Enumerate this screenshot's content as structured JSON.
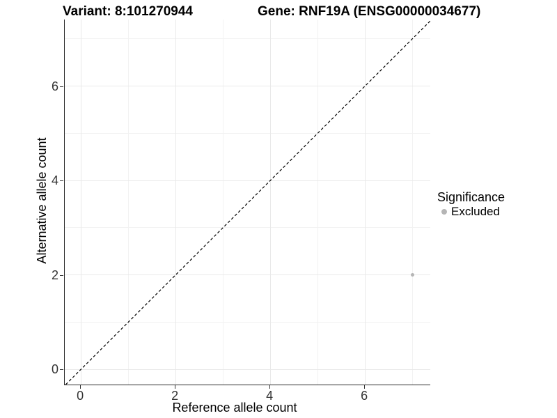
{
  "chart_data": {
    "type": "scatter",
    "titles": [
      "Variant: 8:101270944",
      "Gene: RNF19A (ENSG00000034677)"
    ],
    "xlabel": "Reference allele count",
    "ylabel": "Alternative allele count",
    "xlim": [
      -0.34,
      7.38
    ],
    "ylim": [
      -0.32,
      7.41
    ],
    "x_ticks": [
      0,
      2,
      4,
      6
    ],
    "y_ticks": [
      0,
      2,
      4,
      6
    ],
    "x_tick_labels": [
      "0",
      "2",
      "4",
      "6"
    ],
    "y_tick_labels": [
      "0",
      "2",
      "4",
      "6"
    ],
    "x_minor_ticks": [
      1,
      3,
      5,
      7
    ],
    "y_minor_ticks": [
      1,
      3,
      5,
      7
    ],
    "grid": true,
    "legend": {
      "title": "Significance",
      "position": "right",
      "entries": [
        "Excluded"
      ]
    },
    "series": [
      {
        "name": "Excluded",
        "color": "#b5b5b5",
        "point_size": 5,
        "points": [
          {
            "x": 7,
            "y": 2
          }
        ]
      }
    ],
    "reference_line": {
      "type": "identity y=x",
      "style": "dashed",
      "color": "#000000"
    }
  },
  "colors": {
    "background": "#ffffff",
    "grid_major": "#e9e9e9",
    "grid_minor": "#f2f2f2",
    "axis_line": "#2b2b2b",
    "tick_mark": "#333333",
    "tick_text": "#333333",
    "title_text": "#000000"
  }
}
